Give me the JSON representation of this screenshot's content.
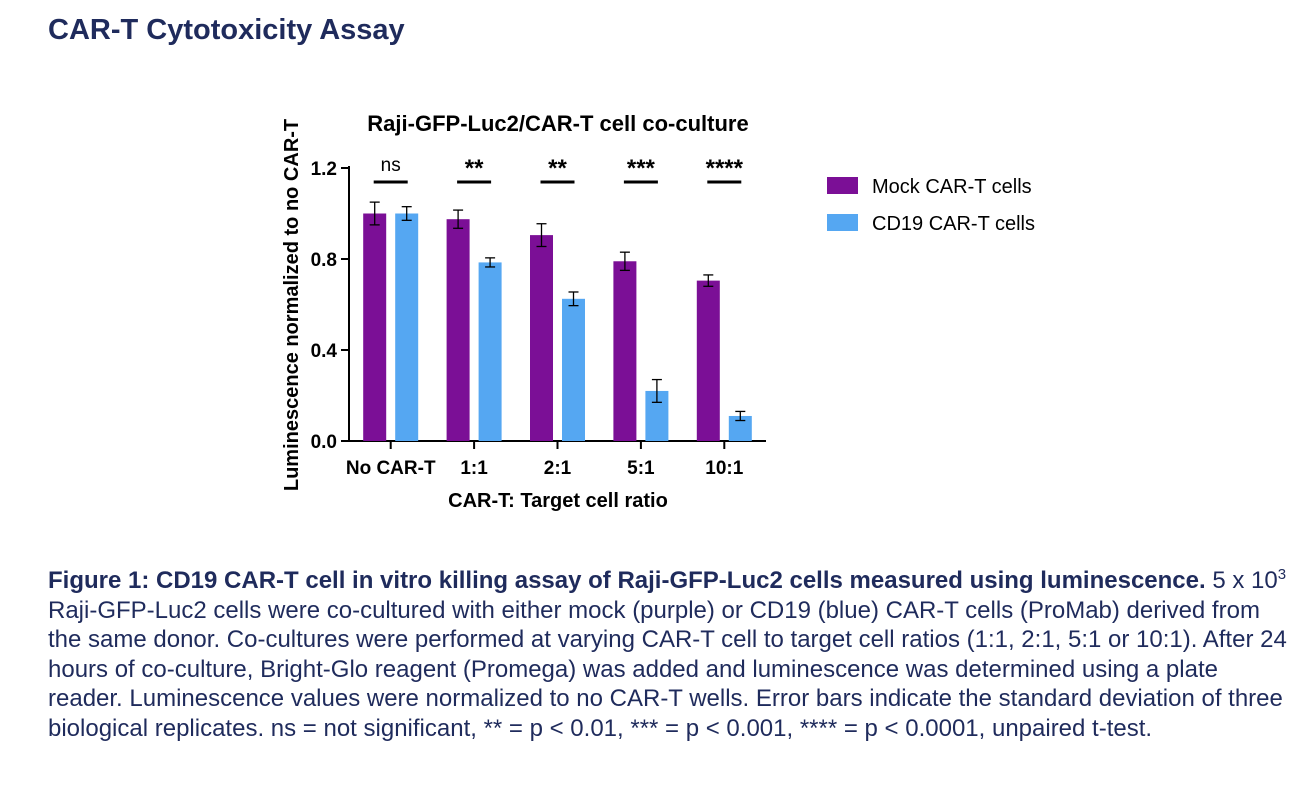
{
  "page": {
    "title": "CAR-T Cytotoxicity Assay"
  },
  "chart_data": {
    "type": "bar",
    "title": "Raji-GFP-Luc2/CAR-T cell co-culture",
    "xlabel": "CAR-T: Target cell ratio",
    "ylabel": "Luminescence normalized to no CAR-T",
    "ylim": [
      0,
      1.2
    ],
    "yticks": [
      0.0,
      0.4,
      0.8,
      1.2
    ],
    "ytick_labels": [
      "0.0",
      "0.4",
      "0.8",
      "1.2"
    ],
    "categories": [
      "No CAR-T",
      "1:1",
      "2:1",
      "5:1",
      "10:1"
    ],
    "series": [
      {
        "name": "Mock CAR-T cells",
        "color": "#7b0f96",
        "values": [
          1.0,
          0.975,
          0.905,
          0.79,
          0.705
        ],
        "errors": [
          0.05,
          0.04,
          0.05,
          0.04,
          0.025
        ]
      },
      {
        "name": "CD19 CAR-T cells",
        "color": "#55a7f2",
        "values": [
          1.0,
          0.785,
          0.625,
          0.22,
          0.11
        ],
        "errors": [
          0.03,
          0.02,
          0.03,
          0.05,
          0.02
        ]
      }
    ],
    "significance": [
      "ns",
      "**",
      "**",
      "***",
      "****"
    ],
    "legend_position": "right"
  },
  "caption": {
    "lead": "Figure 1: CD19 CAR-T cell in vitro killing assay of Raji-GFP-Luc2 cells measured using luminescence.",
    "body_before_sup": " 5 x 10",
    "sup": "3",
    "body_after_sup": " Raji-GFP-Luc2 cells were co-cultured with either mock (purple) or CD19 (blue) CAR-T cells (ProMab) derived from the same donor. Co-cultures were performed at varying CAR-T cell to target cell ratios (1:1, 2:1, 5:1 or 10:1). After 24 hours of co-culture, Bright-Glo reagent (Promega) was added and luminescence was determined using a plate reader. Luminescence values were normalized to no CAR-T wells. Error bars indicate the standard deviation of three biological replicates. ns = not significant, ** = p < 0.01, *** = p < 0.001, **** = p < 0.0001, unpaired t-test."
  }
}
